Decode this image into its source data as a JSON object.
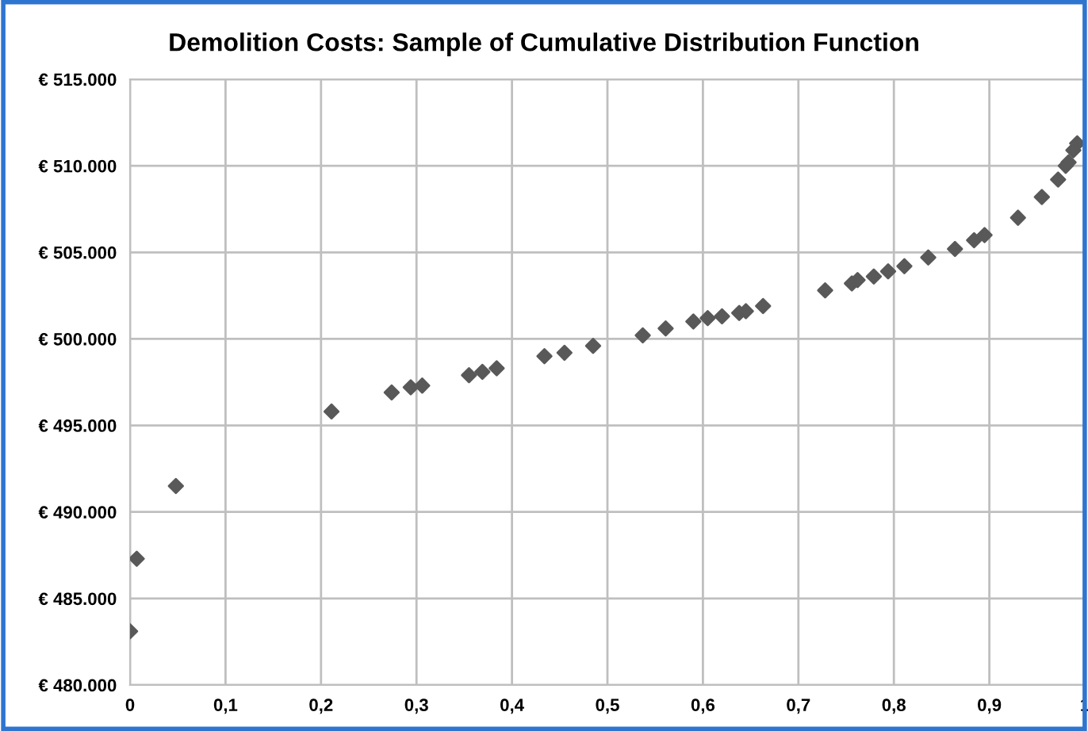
{
  "chart_data": {
    "type": "scatter",
    "title": "Demolition Costs: Sample of Cumulative Distribution Function",
    "x": [
      0,
      0.007,
      0.048,
      0.211,
      0.274,
      0.294,
      0.306,
      0.355,
      0.369,
      0.384,
      0.434,
      0.455,
      0.485,
      0.537,
      0.561,
      0.59,
      0.605,
      0.62,
      0.638,
      0.645,
      0.663,
      0.728,
      0.756,
      0.762,
      0.779,
      0.794,
      0.811,
      0.836,
      0.864,
      0.884,
      0.895,
      0.93,
      0.955,
      0.972,
      0.98,
      0.983,
      0.988,
      0.992
    ],
    "series": [
      {
        "color": "#595959",
        "values": [
          483100,
          487300,
          491500,
          495800,
          496900,
          497200,
          497300,
          497900,
          498100,
          498300,
          499000,
          499200,
          499600,
          500200,
          500600,
          501000,
          501200,
          501300,
          501500,
          501600,
          501900,
          502800,
          503200,
          503400,
          503600,
          503900,
          504200,
          504700,
          505200,
          505700,
          506000,
          507000,
          508200,
          509200,
          510000,
          510200,
          510900,
          511300
        ]
      }
    ],
    "marker": "diamond",
    "grid": true,
    "legend": false,
    "xlim": [
      0,
      1
    ],
    "xticks": [
      0,
      {
        "value": 0.1,
        "label": "0,1"
      },
      {
        "value": 0.2,
        "label": "0,2"
      },
      {
        "value": 0.3,
        "label": "0,3"
      },
      {
        "value": 0.4,
        "label": "0,4"
      },
      {
        "value": 0.5,
        "label": "0,5"
      },
      {
        "value": 0.6,
        "label": "0,6"
      },
      {
        "value": 0.7,
        "label": "0,7"
      },
      {
        "value": 0.8,
        "label": "0,8"
      },
      {
        "value": 0.9,
        "label": "0,9"
      },
      1
    ],
    "ylim": [
      480000,
      515000
    ],
    "yticks": [
      {
        "value": 480000,
        "label": "€ 480.000"
      },
      {
        "value": 485000,
        "label": "€ 485.000"
      },
      {
        "value": 490000,
        "label": "€ 490.000"
      },
      {
        "value": 495000,
        "label": "€ 495.000"
      },
      {
        "value": 500000,
        "label": "€ 500.000"
      },
      {
        "value": 505000,
        "label": "€ 505.000"
      },
      {
        "value": 510000,
        "label": "€ 510.000"
      },
      {
        "value": 515000,
        "label": "€ 515.000"
      }
    ]
  }
}
